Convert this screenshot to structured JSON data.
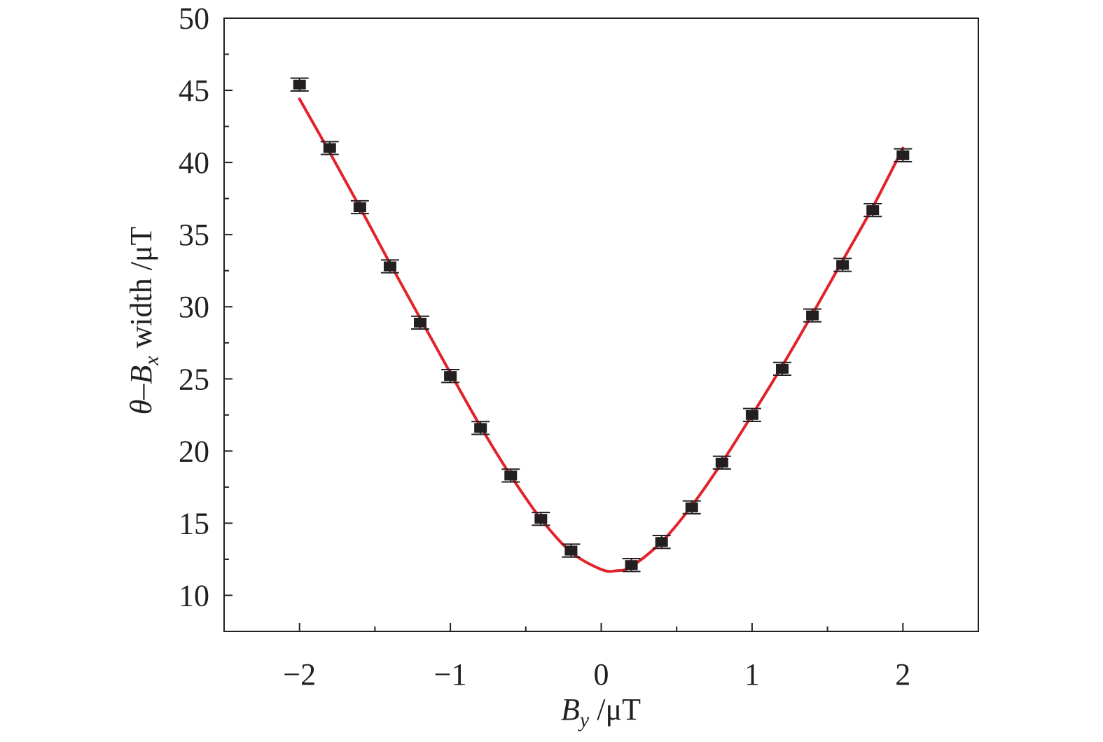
{
  "chart_data": {
    "type": "scatter",
    "xlabel": {
      "symbol": "B",
      "subscript": "y",
      "unit": " /μT"
    },
    "ylabel": {
      "symbol": "θ",
      "dash": "–",
      "symbol2": "B",
      "subscript": "x",
      "unit": " width /μT"
    },
    "xlim": [
      -2.5,
      2.5
    ],
    "ylim": [
      7.5,
      50
    ],
    "x_ticks": [
      -2,
      -1,
      0,
      1,
      2
    ],
    "x_tick_labels": [
      "−2",
      "−1",
      "0",
      "1",
      "2"
    ],
    "y_ticks": [
      10,
      15,
      20,
      25,
      30,
      35,
      40,
      45,
      50
    ],
    "y_tick_labels": [
      "10",
      "15",
      "20",
      "25",
      "30",
      "35",
      "40",
      "45",
      "50"
    ],
    "grid": false,
    "legend": false,
    "series": [
      {
        "kind": "points-with-errorbars",
        "color": "#231f20",
        "x": [
          -2.0,
          -1.8,
          -1.6,
          -1.4,
          -1.2,
          -1.0,
          -0.8,
          -0.6,
          -0.4,
          -0.2,
          0.2,
          0.4,
          0.6,
          0.8,
          1.0,
          1.2,
          1.4,
          1.6,
          1.8,
          2.0
        ],
        "y": [
          45.4,
          41.0,
          36.9,
          32.8,
          28.9,
          25.2,
          21.6,
          18.3,
          15.3,
          13.1,
          12.1,
          13.7,
          16.1,
          19.2,
          22.5,
          25.7,
          29.4,
          32.9,
          36.7,
          40.5
        ],
        "error": [
          0.25,
          0.25,
          0.25,
          0.25,
          0.25,
          0.25,
          0.25,
          0.25,
          0.25,
          0.25,
          0.25,
          0.25,
          0.25,
          0.25,
          0.25,
          0.25,
          0.25,
          0.25,
          0.25,
          0.25
        ]
      },
      {
        "kind": "fit-curve",
        "color": "#e2232a",
        "x": [
          -2.0,
          -1.8,
          -1.6,
          -1.4,
          -1.2,
          -1.0,
          -0.8,
          -0.6,
          -0.4,
          -0.2,
          0.0,
          0.1,
          0.2,
          0.4,
          0.6,
          0.8,
          1.0,
          1.2,
          1.4,
          1.6,
          1.8,
          2.0
        ],
        "y": [
          44.4,
          40.7,
          36.9,
          33.0,
          29.2,
          25.4,
          21.7,
          18.3,
          15.3,
          13.0,
          11.8,
          11.7,
          12.0,
          13.7,
          16.2,
          19.2,
          22.5,
          25.9,
          29.5,
          33.2,
          36.9,
          41.0
        ]
      }
    ]
  }
}
